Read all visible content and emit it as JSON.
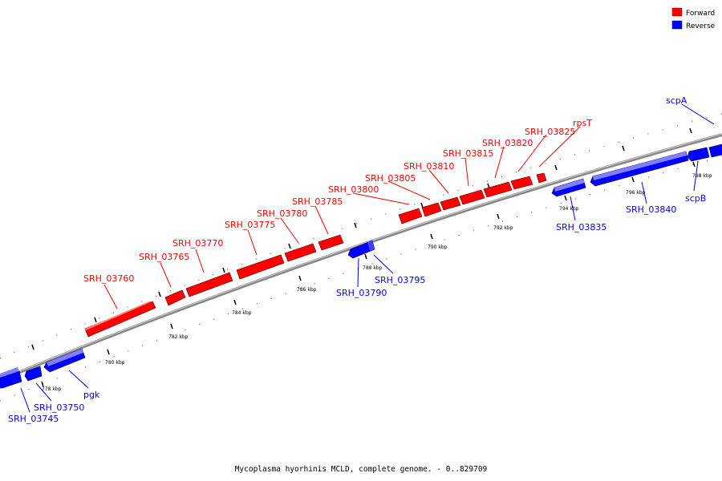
{
  "caption": "Mycoplasma hyorhinis MCLD, complete genome. - 0..829709",
  "legend": [
    {
      "label": "Forward",
      "color": "#ff0000"
    },
    {
      "label": "Reverse",
      "color": "#0000ff"
    }
  ],
  "colors": {
    "forward": "#ff0000",
    "reverse": "#0000ff",
    "backbone": "#888888"
  },
  "ticks": [
    "778 kbp",
    "780 kbp",
    "782 kbp",
    "784 kbp",
    "786 kbp",
    "788 kbp",
    "790 kbp",
    "792 kbp",
    "794 kbp",
    "796 kbp",
    "798 kbp"
  ],
  "genes": [
    {
      "name": "SRH_03745",
      "strand": "reverse"
    },
    {
      "name": "SRH_03750",
      "strand": "reverse"
    },
    {
      "name": "pgk",
      "strand": "reverse"
    },
    {
      "name": "SRH_03760",
      "strand": "forward"
    },
    {
      "name": "SRH_03765",
      "strand": "forward"
    },
    {
      "name": "SRH_03770",
      "strand": "forward"
    },
    {
      "name": "SRH_03775",
      "strand": "forward"
    },
    {
      "name": "SRH_03780",
      "strand": "forward"
    },
    {
      "name": "SRH_03785",
      "strand": "forward"
    },
    {
      "name": "SRH_03790",
      "strand": "reverse"
    },
    {
      "name": "SRH_03795",
      "strand": "reverse"
    },
    {
      "name": "SRH_03800",
      "strand": "forward"
    },
    {
      "name": "SRH_03805",
      "strand": "forward"
    },
    {
      "name": "SRH_03810",
      "strand": "forward"
    },
    {
      "name": "SRH_03815",
      "strand": "forward"
    },
    {
      "name": "SRH_03820",
      "strand": "forward"
    },
    {
      "name": "SRH_03825",
      "strand": "forward"
    },
    {
      "name": "rpsT",
      "strand": "forward"
    },
    {
      "name": "SRH_03835",
      "strand": "reverse"
    },
    {
      "name": "SRH_03840",
      "strand": "reverse"
    },
    {
      "name": "scpB",
      "strand": "reverse"
    },
    {
      "name": "scpA",
      "strand": "reverse"
    }
  ]
}
